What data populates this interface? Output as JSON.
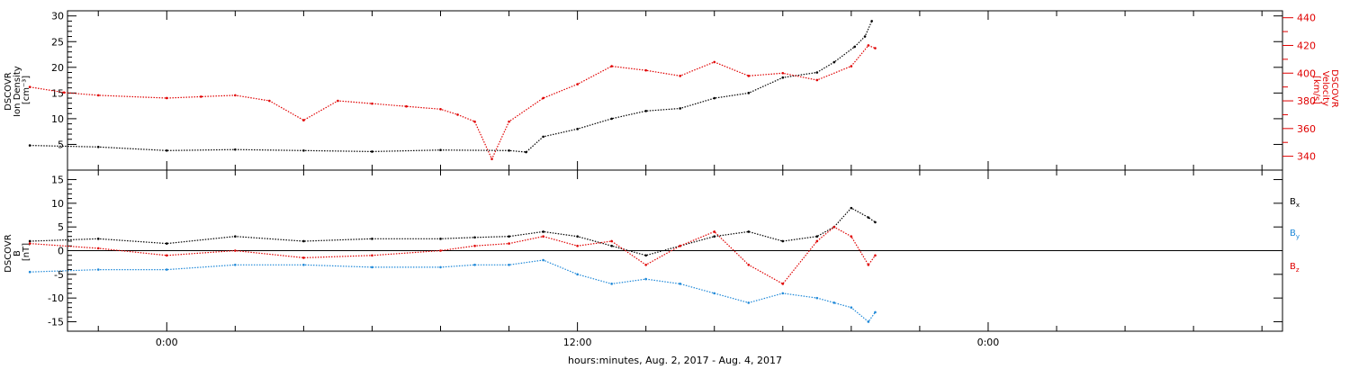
{
  "chart_data": [
    {
      "type": "scatter",
      "ylabel_lines": [
        "DSCOVR",
        "Ion Density",
        "[cm⁻³]"
      ],
      "y_ticks": [
        "5",
        "10",
        "15",
        "20",
        "25",
        "30"
      ],
      "y_tick_values": [
        5,
        10,
        15,
        20,
        25,
        30
      ],
      "ylim": [
        0,
        31
      ],
      "y2label_lines": [
        "DSCOVR",
        "Velocity",
        "[km/s]"
      ],
      "y2_ticks": [
        "340",
        "360",
        "380",
        "400",
        "420",
        "440"
      ],
      "y2_tick_values": [
        340,
        360,
        380,
        400,
        420,
        440
      ],
      "y2lim": [
        330,
        445
      ],
      "series": [
        {
          "name": "",
          "axis": "left",
          "color": "#000000",
          "x": [
            -4,
            -2,
            0,
            2,
            4,
            6,
            8,
            10,
            10.5,
            11,
            12,
            13,
            14,
            15,
            16,
            17,
            18,
            19,
            19.5,
            20.1,
            20.4,
            20.6
          ],
          "y": [
            4.8,
            4.5,
            3.8,
            4.0,
            3.8,
            3.6,
            3.9,
            3.8,
            3.5,
            6.5,
            8,
            10,
            11.5,
            12,
            14,
            15,
            18,
            19,
            21,
            24,
            26,
            29
          ]
        },
        {
          "name": "",
          "axis": "right",
          "color": "#e00000",
          "x": [
            -4,
            -3,
            -2,
            0,
            1,
            2,
            3,
            4,
            5,
            6,
            7,
            8,
            8.5,
            9,
            9.5,
            10,
            11,
            12,
            13,
            14,
            15,
            16,
            17,
            18,
            19,
            20,
            20.5,
            20.7
          ],
          "y": [
            390,
            386,
            384,
            382,
            383,
            384,
            380,
            366,
            380,
            378,
            376,
            374,
            370,
            365,
            338,
            365,
            382,
            392,
            405,
            402,
            398,
            408,
            398,
            400,
            395,
            405,
            420,
            418
          ]
        }
      ]
    },
    {
      "type": "scatter",
      "ylabel_lines": [
        "DSCOVR",
        "B",
        "[nT]"
      ],
      "y_ticks": [
        "-15",
        "-10",
        "-5",
        "0",
        "5",
        "10",
        "15"
      ],
      "y_tick_values": [
        -15,
        -10,
        -5,
        0,
        5,
        10,
        15
      ],
      "ylim": [
        -17,
        17
      ],
      "zero_line": true,
      "series": [
        {
          "name": "Bx",
          "color": "#000000",
          "x": [
            -4,
            -2,
            0,
            2,
            4,
            6,
            8,
            9,
            10,
            11,
            12,
            13,
            14,
            15,
            16,
            17,
            18,
            19,
            19.5,
            20,
            20.5,
            20.7
          ],
          "y": [
            2,
            2.5,
            1.5,
            3,
            2,
            2.5,
            2.5,
            2.8,
            3,
            4,
            3,
            1,
            -1,
            1,
            3,
            4,
            2,
            3,
            5,
            9,
            7,
            6
          ]
        },
        {
          "name": "By",
          "color": "#1e88d8",
          "x": [
            -4,
            -2,
            0,
            2,
            4,
            6,
            8,
            9,
            10,
            11,
            12,
            13,
            14,
            15,
            16,
            17,
            18,
            19,
            19.5,
            20,
            20.5,
            20.7
          ],
          "y": [
            -4.5,
            -4,
            -4,
            -3,
            -3,
            -3.5,
            -3.5,
            -3,
            -3,
            -2,
            -5,
            -7,
            -6,
            -7,
            -9,
            -11,
            -9,
            -10,
            -11,
            -12,
            -15,
            -13
          ]
        },
        {
          "name": "Bz",
          "color": "#e00000",
          "x": [
            -4,
            -2,
            0,
            2,
            4,
            6,
            8,
            9,
            10,
            11,
            12,
            13,
            14,
            15,
            16,
            17,
            18,
            19,
            19.5,
            20,
            20.5,
            20.7
          ],
          "y": [
            1.5,
            0.5,
            -1,
            0,
            -1.5,
            -1,
            0,
            1,
            1.5,
            3,
            1,
            2,
            -3,
            1,
            4,
            -3,
            -7,
            2,
            5,
            3,
            -3,
            -1
          ]
        }
      ],
      "legend": {
        "Bx": "B",
        "By": "B",
        "Bz": "B",
        "sub_x": "x",
        "sub_y": "y",
        "sub_z": "z"
      }
    }
  ],
  "x_axis": {
    "label": "hours:minutes, Aug.  2, 2017 - Aug.  4, 2017",
    "tick_labels": [
      "0:00",
      "12:00",
      "0:00"
    ],
    "tick_values": [
      0,
      12,
      24
    ],
    "xlim": [
      -2.9,
      32.6
    ],
    "minor_tick_step": 2
  },
  "colors": {
    "black": "#000000",
    "red": "#e00000",
    "blue": "#1e88d8"
  }
}
